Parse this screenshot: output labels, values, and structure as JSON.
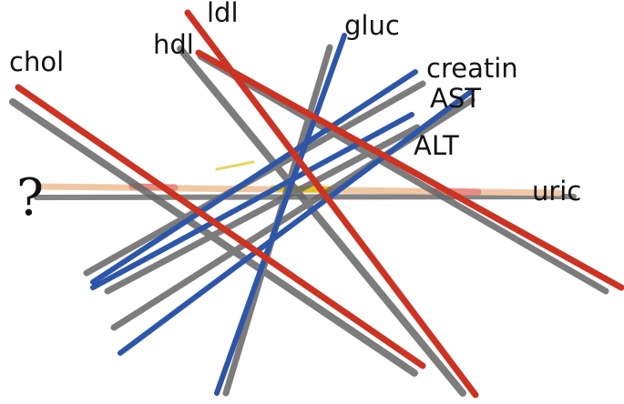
{
  "labels": {
    "chol": "chol",
    "hdl": "hdl",
    "ldl": "ldl",
    "gluc": "gluc",
    "creatin": "creatin",
    "ast": "AST",
    "alt": "ALT",
    "uric": "uric",
    "unknown": "?"
  },
  "colors": {
    "red_stick": "#cc3322",
    "blue_stick": "#2e56a8",
    "shadow": "#666666",
    "tan_stick": "#efc8a3",
    "pink_band": "#e88b80",
    "yellow_band": "#e4c51d",
    "text": "#111111"
  }
}
